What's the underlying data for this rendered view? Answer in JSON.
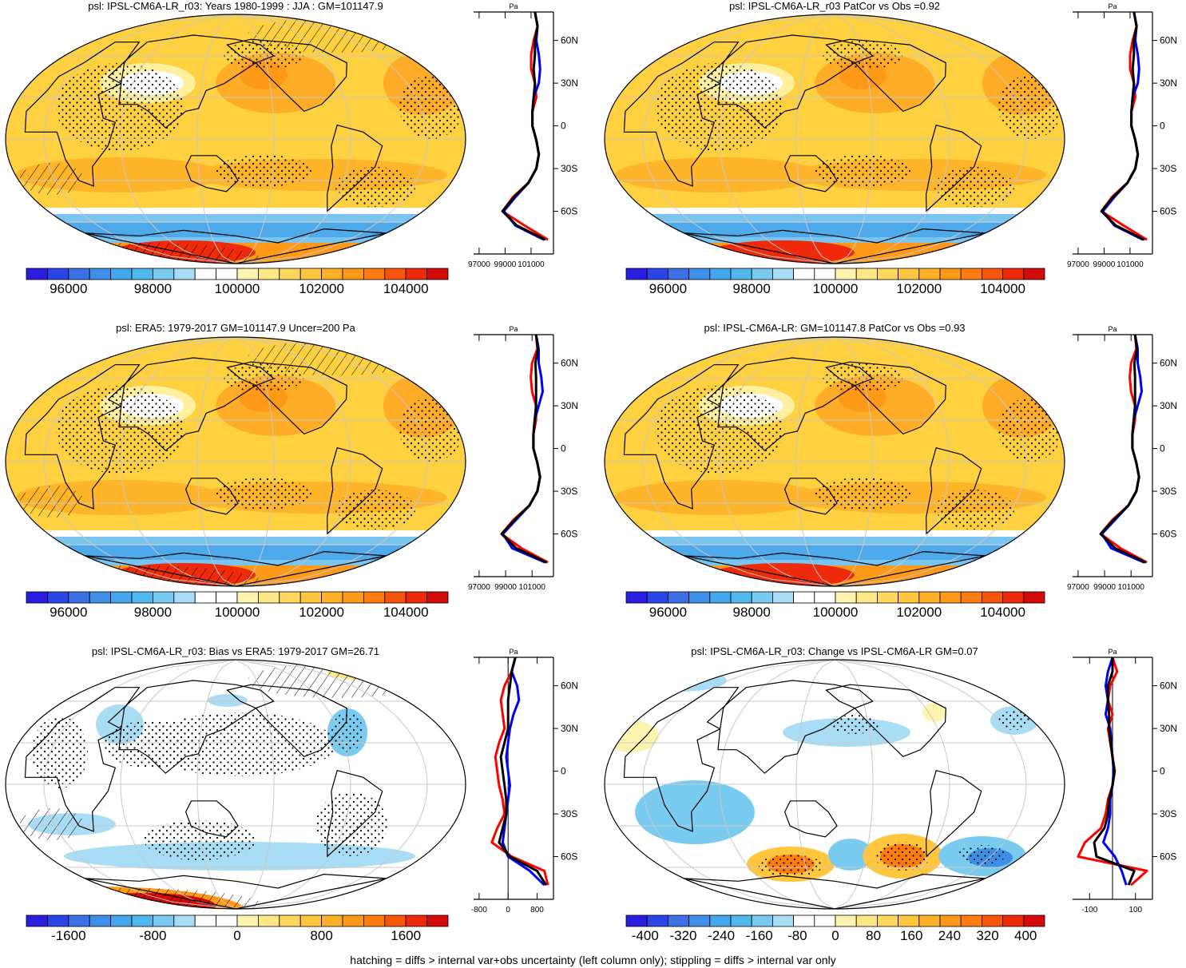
{
  "footer": "hatching = diffs > internal var+obs uncertainty (left column only); stippling = diffs > internal var only",
  "colors": {
    "scale": [
      "#2b1de0",
      "#2a44e6",
      "#3b6fe4",
      "#3d8fe8",
      "#44a6ec",
      "#4fb9ee",
      "#7acbf0",
      "#a9ddf5",
      "#ffffff",
      "#ffffff",
      "#fff3b0",
      "#ffe786",
      "#ffd75e",
      "#ffc63e",
      "#ffb026",
      "#ff9a18",
      "#ff7d10",
      "#f8550c",
      "#ee2a0a",
      "#d40a08"
    ],
    "coast": "#000000",
    "grid": "#c8c8c8",
    "model_line": "#ff0000",
    "obs_line": "#0000ff",
    "mean_line": "#000000"
  },
  "chart_data": [
    {
      "type": "heatmap",
      "id": "model-climatology",
      "title": "psl: IPSL-CM6A-LR_r03: Years 1980-1999 : JJA : GM=101147.9",
      "colorbar_ticks": [
        "96000",
        "98000",
        "100000",
        "102000",
        "104000"
      ],
      "colorbar_range": [
        95000,
        105000
      ],
      "profile": {
        "xticks": [
          "97000",
          "99000",
          "101000"
        ],
        "yticks": [
          "60N",
          "30N",
          "0",
          "30S",
          "60S"
        ],
        "xunit": "Pa",
        "lat": [
          80,
          70,
          60,
          50,
          40,
          30,
          20,
          10,
          0,
          -10,
          -20,
          -30,
          -40,
          -50,
          -60,
          -70,
          -80
        ],
        "model": [
          101300,
          101500,
          101200,
          101000,
          101000,
          101300,
          101400,
          101100,
          101100,
          101400,
          101600,
          101400,
          100800,
          99600,
          98800,
          100500,
          102300
        ],
        "obs": [
          101300,
          101500,
          101400,
          101600,
          101700,
          101600,
          101200,
          101100,
          101100,
          101400,
          101600,
          101400,
          100800,
          99800,
          98900,
          99800,
          102000
        ],
        "mean": [
          101300,
          101500,
          101300,
          101300,
          101200,
          101300,
          101200,
          101100,
          101100,
          101400,
          101600,
          101400,
          100800,
          99700,
          98800,
          99900,
          102100
        ]
      }
    },
    {
      "type": "heatmap",
      "id": "model-patcor",
      "title": "psl: IPSL-CM6A-LR_r03 PatCor vs Obs =0.92",
      "colorbar_ticks": [
        "96000",
        "98000",
        "100000",
        "102000",
        "104000"
      ],
      "colorbar_range": [
        95000,
        105000
      ],
      "profile": {
        "xticks": [
          "97000",
          "99000",
          "101000"
        ],
        "yticks": [
          "60N",
          "30N",
          "0",
          "30S",
          "60S"
        ],
        "xunit": "Pa",
        "lat": [
          80,
          70,
          60,
          50,
          40,
          30,
          20,
          10,
          0,
          -10,
          -20,
          -30,
          -40,
          -50,
          -60,
          -70,
          -80
        ],
        "model": [
          101300,
          101500,
          101200,
          101000,
          101000,
          101300,
          101400,
          101100,
          101100,
          101400,
          101600,
          101400,
          100800,
          99600,
          98800,
          100500,
          102300
        ],
        "obs": [
          101300,
          101500,
          101400,
          101600,
          101700,
          101600,
          101200,
          101100,
          101100,
          101400,
          101600,
          101400,
          100800,
          99800,
          98900,
          99800,
          102000
        ],
        "mean": [
          101300,
          101500,
          101300,
          101300,
          101200,
          101300,
          101200,
          101100,
          101100,
          101400,
          101600,
          101400,
          100800,
          99700,
          98800,
          99900,
          102100
        ]
      }
    },
    {
      "type": "heatmap",
      "id": "era5-climatology",
      "title": "psl: ERA5: 1979-2017 GM=101147.9 Uncer=200 Pa",
      "colorbar_ticks": [
        "96000",
        "98000",
        "100000",
        "102000",
        "104000"
      ],
      "colorbar_range": [
        95000,
        105000
      ],
      "profile": {
        "xticks": [
          "97000",
          "99000",
          "101000"
        ],
        "yticks": [
          "60N",
          "30N",
          "0",
          "30S",
          "60S"
        ],
        "xunit": "Pa",
        "lat": [
          80,
          70,
          60,
          50,
          40,
          30,
          20,
          10,
          0,
          -10,
          -20,
          -30,
          -40,
          -50,
          -60,
          -70,
          -80
        ],
        "model": [
          101300,
          101400,
          101000,
          100900,
          101000,
          101300,
          101300,
          101100,
          101100,
          101400,
          101600,
          101400,
          100800,
          99600,
          98700,
          100200,
          102200
        ],
        "obs": [
          101300,
          101500,
          101500,
          101700,
          101800,
          101500,
          101200,
          101100,
          101100,
          101400,
          101600,
          101400,
          100800,
          99800,
          98800,
          99500,
          102000
        ],
        "mean": [
          101300,
          101450,
          101250,
          101300,
          101300,
          101300,
          101200,
          101100,
          101100,
          101400,
          101600,
          101400,
          100800,
          99700,
          98700,
          99800,
          102100
        ]
      }
    },
    {
      "type": "heatmap",
      "id": "multimodel-patcor",
      "title": "psl: IPSL-CM6A-LR: GM=101147.8 PatCor vs Obs =0.93",
      "colorbar_ticks": [
        "96000",
        "98000",
        "100000",
        "102000",
        "104000"
      ],
      "colorbar_range": [
        95000,
        105000
      ],
      "profile": {
        "xticks": [
          "97000",
          "99000",
          "101000"
        ],
        "yticks": [
          "60N",
          "30N",
          "0",
          "30S",
          "60S"
        ],
        "xunit": "Pa",
        "lat": [
          80,
          70,
          60,
          50,
          40,
          30,
          20,
          10,
          0,
          -10,
          -20,
          -30,
          -40,
          -50,
          -60,
          -70,
          -80
        ],
        "model": [
          101300,
          101400,
          101000,
          100900,
          101000,
          101300,
          101300,
          101100,
          101100,
          101400,
          101600,
          101400,
          100800,
          99600,
          98700,
          100200,
          102200
        ],
        "obs": [
          101300,
          101500,
          101500,
          101700,
          101800,
          101500,
          101200,
          101100,
          101100,
          101400,
          101600,
          101400,
          100800,
          99800,
          98800,
          99500,
          102000
        ],
        "mean": [
          101300,
          101450,
          101250,
          101300,
          101300,
          101300,
          101200,
          101100,
          101100,
          101400,
          101600,
          101400,
          100800,
          99700,
          98700,
          99800,
          102100
        ]
      }
    },
    {
      "type": "heatmap",
      "id": "bias-vs-era5",
      "title": "psl: IPSL-CM6A-LR_r03: Bias vs ERA5: 1979-2017 GM=26.71",
      "colorbar_ticks": [
        "-1600",
        "-800",
        "0",
        "800",
        "1600"
      ],
      "colorbar_range": [
        -2000,
        2000
      ],
      "profile": {
        "xticks": [
          "-800",
          "0",
          "800"
        ],
        "yticks": [
          "60N",
          "30N",
          "0",
          "30S",
          "60S"
        ],
        "xunit": "Pa",
        "lat": [
          80,
          70,
          60,
          50,
          40,
          30,
          20,
          10,
          0,
          -10,
          -20,
          -30,
          -40,
          -50,
          -60,
          -70,
          -80
        ],
        "model": [
          200,
          100,
          -100,
          -200,
          -150,
          -100,
          -250,
          -350,
          -300,
          -250,
          -150,
          -100,
          -300,
          -450,
          100,
          1000,
          1100
        ],
        "obs": [
          200,
          100,
          250,
          300,
          150,
          50,
          0,
          -50,
          0,
          50,
          0,
          -50,
          -100,
          -150,
          0,
          600,
          1000
        ],
        "mean": [
          200,
          100,
          50,
          0,
          0,
          0,
          -100,
          -200,
          -150,
          -100,
          -50,
          -50,
          -150,
          -250,
          50,
          800,
          1050
        ]
      }
    },
    {
      "type": "heatmap",
      "id": "change-vs-ensemble",
      "title": "psl: IPSL-CM6A-LR_r03: Change vs IPSL-CM6A-LR GM=0.07",
      "colorbar_ticks": [
        "-400",
        "-320",
        "-240",
        "-160",
        "-80",
        "0",
        "80",
        "160",
        "240",
        "320",
        "400"
      ],
      "colorbar_range": [
        -440,
        440
      ],
      "profile": {
        "xticks": [
          "-100",
          "100"
        ],
        "yticks": [
          "60N",
          "30N",
          "0",
          "30S",
          "60S"
        ],
        "xunit": "Pa",
        "lat": [
          80,
          70,
          60,
          50,
          40,
          30,
          20,
          10,
          0,
          -10,
          -20,
          -30,
          -40,
          -50,
          -60,
          -70,
          -80
        ],
        "model": [
          0,
          20,
          -10,
          -20,
          0,
          -20,
          -10,
          0,
          10,
          0,
          -20,
          -30,
          -50,
          -120,
          -150,
          150,
          80
        ],
        "obs": [
          0,
          -20,
          -30,
          -20,
          -30,
          -10,
          -5,
          0,
          5,
          0,
          -10,
          -10,
          -20,
          -40,
          10,
          40,
          60
        ],
        "mean": [
          0,
          0,
          -20,
          -20,
          -15,
          -15,
          -8,
          0,
          8,
          0,
          -15,
          -20,
          -35,
          -80,
          -70,
          95,
          70
        ]
      }
    }
  ]
}
